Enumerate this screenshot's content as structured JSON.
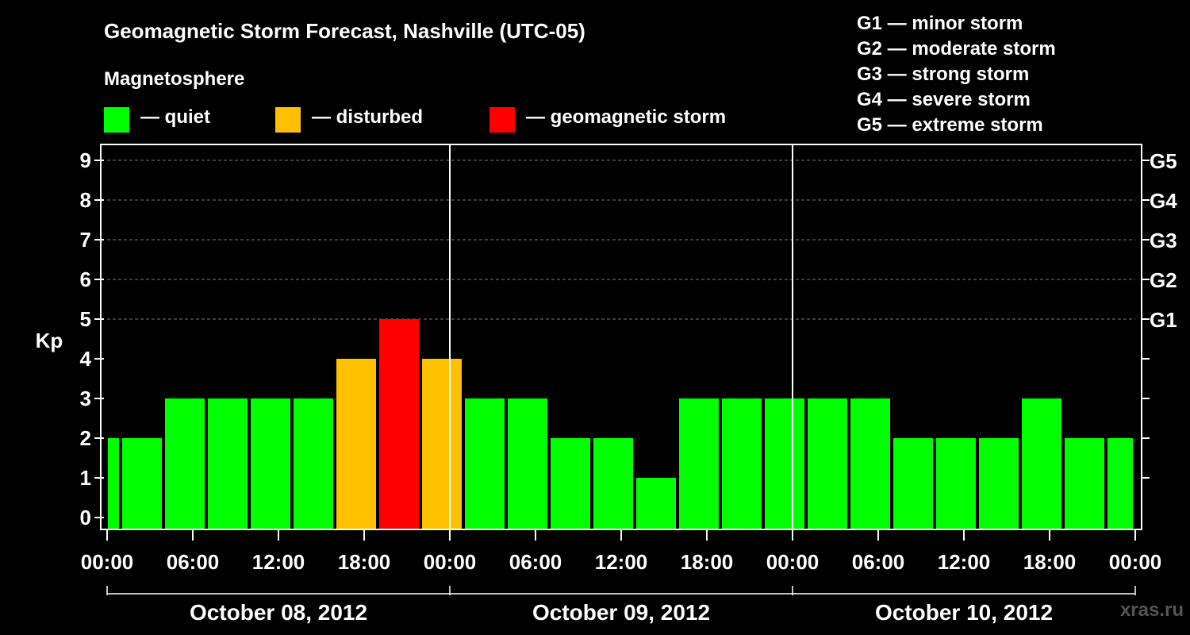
{
  "header": {
    "title": "Geomagnetic Storm Forecast, Nashville (UTC-05)",
    "magnetosphere_label": "Magnetosphere"
  },
  "legend": [
    {
      "label": "— quiet",
      "color": "#00ff00"
    },
    {
      "label": "— disturbed",
      "color": "#ffc000"
    },
    {
      "label": "— geomagnetic storm",
      "color": "#ff0000"
    }
  ],
  "g_scale": [
    "G1 — minor storm",
    "G2 — moderate storm",
    "G3 — strong storm",
    "G4 — severe storm",
    "G5 — extreme storm"
  ],
  "watermark": "xras.ru",
  "colors": {
    "quiet": "#00ff00",
    "disturbed": "#ffc000",
    "storm": "#ff0000",
    "background": "#000000",
    "foreground": "#ffffff"
  },
  "chart_data": {
    "type": "bar",
    "title": "Geomagnetic Storm Forecast, Nashville (UTC-05)",
    "ylabel": "Kp",
    "ylim": [
      0,
      9
    ],
    "yticks": [
      0,
      1,
      2,
      3,
      4,
      5,
      6,
      7,
      8,
      9
    ],
    "right_axis": [
      {
        "kp": 5,
        "label": "G1"
      },
      {
        "kp": 6,
        "label": "G2"
      },
      {
        "kp": 7,
        "label": "G3"
      },
      {
        "kp": 8,
        "label": "G4"
      },
      {
        "kp": 9,
        "label": "G5"
      }
    ],
    "xticks_hours": [
      0,
      6,
      12,
      18,
      24,
      30,
      36,
      42,
      48,
      54,
      60,
      66,
      72
    ],
    "xtick_labels": [
      "00:00",
      "06:00",
      "12:00",
      "18:00",
      "00:00",
      "06:00",
      "12:00",
      "18:00",
      "00:00",
      "06:00",
      "12:00",
      "18:00",
      "00:00"
    ],
    "days": [
      {
        "label": "October 08, 2012",
        "start_hour": 0,
        "end_hour": 24
      },
      {
        "label": "October 09, 2012",
        "start_hour": 24,
        "end_hour": 48
      },
      {
        "label": "October 10, 2012",
        "start_hour": 48,
        "end_hour": 72
      }
    ],
    "grid": "dashed horizontal at Kp 5-9",
    "bars": [
      {
        "start_hour": 0,
        "end_hour": 1,
        "kp": 2,
        "status": "quiet"
      },
      {
        "start_hour": 1,
        "end_hour": 4,
        "kp": 2,
        "status": "quiet"
      },
      {
        "start_hour": 4,
        "end_hour": 7,
        "kp": 3,
        "status": "quiet"
      },
      {
        "start_hour": 7,
        "end_hour": 10,
        "kp": 3,
        "status": "quiet"
      },
      {
        "start_hour": 10,
        "end_hour": 13,
        "kp": 3,
        "status": "quiet"
      },
      {
        "start_hour": 13,
        "end_hour": 16,
        "kp": 3,
        "status": "quiet"
      },
      {
        "start_hour": 16,
        "end_hour": 19,
        "kp": 4,
        "status": "disturbed"
      },
      {
        "start_hour": 19,
        "end_hour": 22,
        "kp": 5,
        "status": "storm"
      },
      {
        "start_hour": 22,
        "end_hour": 25,
        "kp": 4,
        "status": "disturbed"
      },
      {
        "start_hour": 25,
        "end_hour": 28,
        "kp": 3,
        "status": "quiet"
      },
      {
        "start_hour": 28,
        "end_hour": 31,
        "kp": 3,
        "status": "quiet"
      },
      {
        "start_hour": 31,
        "end_hour": 34,
        "kp": 2,
        "status": "quiet"
      },
      {
        "start_hour": 34,
        "end_hour": 37,
        "kp": 2,
        "status": "quiet"
      },
      {
        "start_hour": 37,
        "end_hour": 40,
        "kp": 1,
        "status": "quiet"
      },
      {
        "start_hour": 40,
        "end_hour": 43,
        "kp": 3,
        "status": "quiet"
      },
      {
        "start_hour": 43,
        "end_hour": 46,
        "kp": 3,
        "status": "quiet"
      },
      {
        "start_hour": 46,
        "end_hour": 49,
        "kp": 3,
        "status": "quiet"
      },
      {
        "start_hour": 49,
        "end_hour": 52,
        "kp": 3,
        "status": "quiet"
      },
      {
        "start_hour": 52,
        "end_hour": 55,
        "kp": 3,
        "status": "quiet"
      },
      {
        "start_hour": 55,
        "end_hour": 58,
        "kp": 2,
        "status": "quiet"
      },
      {
        "start_hour": 58,
        "end_hour": 61,
        "kp": 2,
        "status": "quiet"
      },
      {
        "start_hour": 61,
        "end_hour": 64,
        "kp": 2,
        "status": "quiet"
      },
      {
        "start_hour": 64,
        "end_hour": 67,
        "kp": 3,
        "status": "quiet"
      },
      {
        "start_hour": 67,
        "end_hour": 70,
        "kp": 2,
        "status": "quiet"
      },
      {
        "start_hour": 70,
        "end_hour": 72,
        "kp": 2,
        "status": "quiet"
      }
    ]
  }
}
